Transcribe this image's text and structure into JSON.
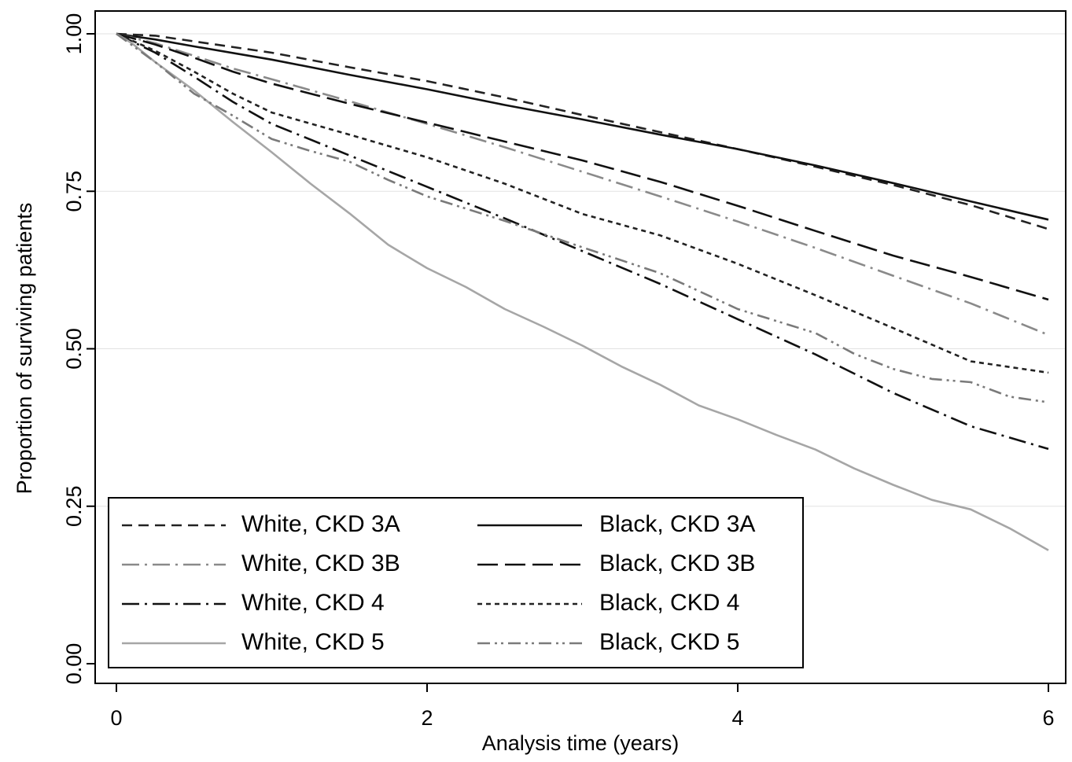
{
  "chart_data": {
    "type": "line",
    "title": "",
    "xlabel": "Analysis time (years)",
    "ylabel": "Proportion of surviving patients",
    "xlim": [
      0,
      6
    ],
    "ylim": [
      0,
      1
    ],
    "x_ticks": [
      "0",
      "2",
      "4",
      "6"
    ],
    "y_ticks": [
      "0.00",
      "0.25",
      "0.50",
      "0.75",
      "1.00"
    ],
    "grid": "horizontal",
    "legend_position": "bottom-left",
    "series": [
      {
        "name": "White, CKD 3A",
        "style": "dash",
        "color": "#222222",
        "x": [
          0,
          0.25,
          0.5,
          1,
          1.5,
          2,
          2.5,
          3,
          3.5,
          4,
          4.5,
          5,
          5.5,
          6
        ],
        "y": [
          1.0,
          0.997,
          0.988,
          0.97,
          0.947,
          0.925,
          0.899,
          0.871,
          0.844,
          0.817,
          0.789,
          0.76,
          0.728,
          0.69
        ]
      },
      {
        "name": "Black, CKD 3A",
        "style": "solid",
        "color": "#111111",
        "x": [
          0,
          0.25,
          0.5,
          1,
          1.5,
          2,
          2.5,
          3,
          3.5,
          4,
          4.5,
          5,
          5.5,
          6
        ],
        "y": [
          1.0,
          0.991,
          0.98,
          0.959,
          0.935,
          0.912,
          0.887,
          0.864,
          0.84,
          0.817,
          0.791,
          0.763,
          0.734,
          0.705
        ]
      },
      {
        "name": "White, CKD 3B",
        "style": "dashdot",
        "color": "#8a8a8a",
        "x": [
          0,
          0.25,
          0.5,
          0.75,
          1,
          1.5,
          2,
          2.5,
          3,
          3.5,
          4,
          4.5,
          5,
          5.5,
          6
        ],
        "y": [
          1.0,
          0.985,
          0.965,
          0.945,
          0.928,
          0.893,
          0.857,
          0.82,
          0.781,
          0.742,
          0.702,
          0.66,
          0.616,
          0.572,
          0.522
        ]
      },
      {
        "name": "Black, CKD 3B",
        "style": "longdash",
        "color": "#111111",
        "x": [
          0,
          0.25,
          0.5,
          0.75,
          1,
          1.5,
          2,
          2.5,
          3,
          3.5,
          4,
          4.5,
          5,
          5.5,
          6
        ],
        "y": [
          1.0,
          0.983,
          0.962,
          0.94,
          0.921,
          0.889,
          0.859,
          0.829,
          0.799,
          0.765,
          0.727,
          0.687,
          0.648,
          0.614,
          0.578
        ]
      },
      {
        "name": "White, CKD 4",
        "style": "dashdot",
        "color": "#111111",
        "x": [
          0,
          0.25,
          0.5,
          0.75,
          1,
          1.5,
          2,
          2.5,
          3,
          3.5,
          4,
          4.5,
          5,
          5.5,
          6
        ],
        "y": [
          1.0,
          0.97,
          0.932,
          0.892,
          0.857,
          0.807,
          0.757,
          0.707,
          0.655,
          0.603,
          0.547,
          0.491,
          0.43,
          0.377,
          0.341
        ]
      },
      {
        "name": "Black, CKD 4",
        "style": "shortdash",
        "color": "#222222",
        "x": [
          0,
          0.25,
          0.5,
          0.75,
          1,
          1.5,
          2,
          2.5,
          3,
          3.5,
          4,
          4.5,
          5,
          5.5,
          6
        ],
        "y": [
          1.0,
          0.973,
          0.94,
          0.905,
          0.875,
          0.84,
          0.804,
          0.762,
          0.714,
          0.68,
          0.635,
          0.585,
          0.533,
          0.48,
          0.462
        ]
      },
      {
        "name": "White, CKD 5",
        "style": "solid",
        "color": "#a6a6a6",
        "x": [
          0,
          0.1,
          0.25,
          0.5,
          0.75,
          1,
          1.25,
          1.5,
          1.75,
          2,
          2.25,
          2.5,
          2.75,
          3,
          3.25,
          3.5,
          3.75,
          4,
          4.25,
          4.5,
          4.75,
          5,
          5.25,
          5.5,
          5.75,
          6
        ],
        "y": [
          1.0,
          0.985,
          0.955,
          0.91,
          0.86,
          0.812,
          0.762,
          0.715,
          0.665,
          0.628,
          0.598,
          0.563,
          0.535,
          0.505,
          0.472,
          0.443,
          0.41,
          0.388,
          0.363,
          0.34,
          0.31,
          0.284,
          0.26,
          0.245,
          0.215,
          0.18
        ]
      },
      {
        "name": "Black, CKD 5",
        "style": "dashdotdot",
        "color": "#7a7a7a",
        "x": [
          0,
          0.25,
          0.5,
          0.75,
          1,
          1.25,
          1.5,
          1.75,
          2,
          2.5,
          3,
          3.5,
          4,
          4.5,
          4.75,
          5,
          5.25,
          5.5,
          5.75,
          6
        ],
        "y": [
          1.0,
          0.955,
          0.905,
          0.87,
          0.833,
          0.814,
          0.797,
          0.768,
          0.742,
          0.703,
          0.661,
          0.62,
          0.563,
          0.525,
          0.492,
          0.468,
          0.452,
          0.447,
          0.424,
          0.415
        ]
      }
    ]
  }
}
